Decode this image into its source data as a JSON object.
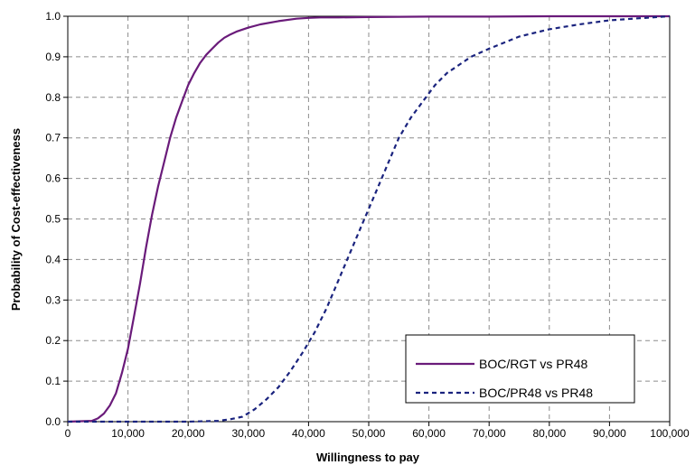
{
  "chart_data": {
    "type": "line",
    "title": "",
    "xlabel": "Willingness to pay",
    "ylabel": "Probability of Cost-effectiveness",
    "xlim": [
      0,
      100000
    ],
    "ylim": [
      0,
      1
    ],
    "x_ticks": [
      "0",
      "10,000",
      "20,000",
      "30,000",
      "40,000",
      "50,000",
      "60,000",
      "70,000",
      "80,000",
      "90,000",
      "100,000"
    ],
    "y_ticks": [
      "0.0",
      "0.1",
      "0.2",
      "0.3",
      "0.4",
      "0.5",
      "0.6",
      "0.7",
      "0.8",
      "0.9",
      "1.0"
    ],
    "grid": true,
    "legend_position": "lower-right",
    "series": [
      {
        "name": "BOC/RGT vs PR48",
        "color": "#6a1b7a",
        "style": "solid",
        "x": [
          0,
          4000,
          5000,
          6000,
          7000,
          8000,
          9000,
          10000,
          11000,
          12000,
          13000,
          14000,
          15000,
          16000,
          17000,
          18000,
          19000,
          20000,
          21000,
          22000,
          23000,
          24000,
          25000,
          26000,
          27000,
          28000,
          30000,
          32000,
          35000,
          38000,
          40000,
          42000,
          45000,
          50000,
          60000,
          70000,
          80000,
          90000,
          100000
        ],
        "y": [
          0.0,
          0.002,
          0.008,
          0.02,
          0.04,
          0.07,
          0.12,
          0.18,
          0.26,
          0.34,
          0.43,
          0.51,
          0.58,
          0.64,
          0.7,
          0.75,
          0.79,
          0.83,
          0.86,
          0.885,
          0.905,
          0.92,
          0.935,
          0.947,
          0.955,
          0.962,
          0.972,
          0.98,
          0.988,
          0.994,
          0.996,
          0.997,
          0.997,
          0.998,
          0.999,
          0.999,
          1.0,
          1.0,
          1.0
        ]
      },
      {
        "name": "BOC/PR48 vs PR48",
        "color": "#1a237e",
        "style": "dashed",
        "x": [
          0,
          20000,
          25000,
          27000,
          29000,
          31000,
          33000,
          35000,
          37000,
          39000,
          41000,
          43000,
          45000,
          47000,
          49000,
          51000,
          53000,
          55000,
          57000,
          59000,
          61000,
          63000,
          65000,
          67000,
          70000,
          75000,
          80000,
          85000,
          90000,
          95000,
          100000
        ],
        "y": [
          0.0,
          0.0,
          0.002,
          0.006,
          0.012,
          0.03,
          0.055,
          0.085,
          0.125,
          0.17,
          0.22,
          0.28,
          0.35,
          0.42,
          0.49,
          0.56,
          0.63,
          0.7,
          0.75,
          0.79,
          0.83,
          0.86,
          0.88,
          0.9,
          0.92,
          0.95,
          0.968,
          0.98,
          0.99,
          0.995,
          1.0
        ]
      }
    ]
  }
}
